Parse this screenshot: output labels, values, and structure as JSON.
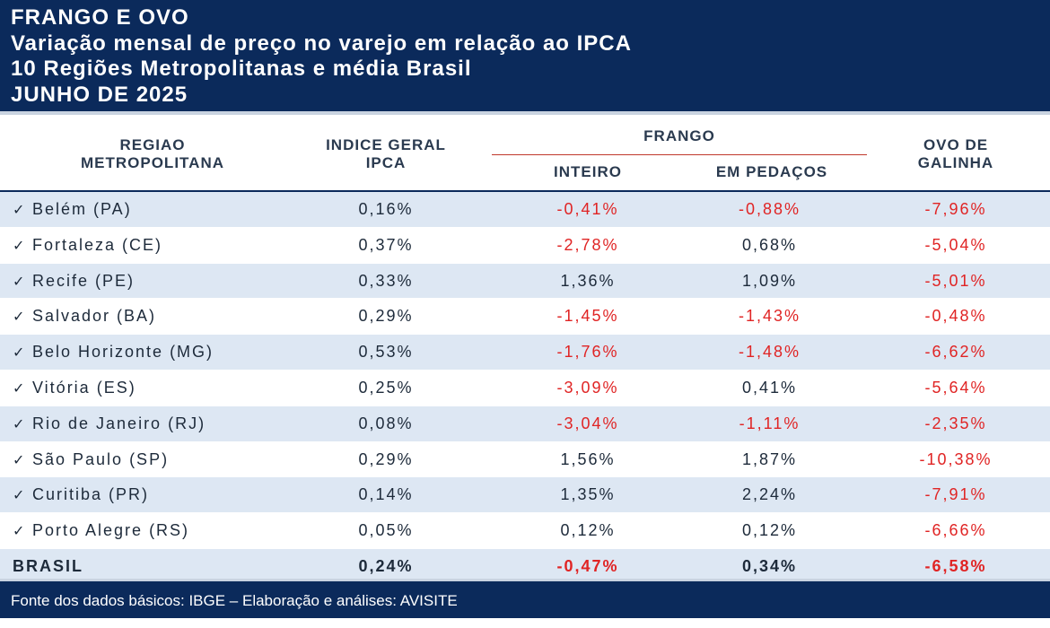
{
  "title": {
    "line1": "FRANGO E OVO",
    "line2": "Variação mensal de preço no varejo em relação ao IPCA",
    "line3": "10 Regiões Metropolitanas e média Brasil",
    "line4": "JUNHO DE 2025"
  },
  "header": {
    "regiao_l1": "REGIAO",
    "regiao_l2": "METROPOLITANA",
    "ipca_l1": "INDICE GERAL",
    "ipca_l2": "IPCA",
    "frango": "FRANGO",
    "inteiro": "INTEIRO",
    "pedacos": "EM PEDAÇOS",
    "ovo_l1": "OVO DE",
    "ovo_l2": "GALINHA"
  },
  "check_symbol": "✓",
  "rows": [
    {
      "name": "Belém (PA)",
      "ipca": "0,16%",
      "inteiro": "-0,41%",
      "pedacos": "-0,88%",
      "ovo": "-7,96%"
    },
    {
      "name": "Fortaleza (CE)",
      "ipca": "0,37%",
      "inteiro": "-2,78%",
      "pedacos": "0,68%",
      "ovo": "-5,04%"
    },
    {
      "name": "Recife (PE)",
      "ipca": "0,33%",
      "inteiro": "1,36%",
      "pedacos": "1,09%",
      "ovo": "-5,01%"
    },
    {
      "name": "Salvador (BA)",
      "ipca": "0,29%",
      "inteiro": "-1,45%",
      "pedacos": "-1,43%",
      "ovo": "-0,48%"
    },
    {
      "name": "Belo Horizonte (MG)",
      "ipca": "0,53%",
      "inteiro": "-1,76%",
      "pedacos": "-1,48%",
      "ovo": "-6,62%"
    },
    {
      "name": "Vitória (ES)",
      "ipca": "0,25%",
      "inteiro": "-3,09%",
      "pedacos": "0,41%",
      "ovo": "-5,64%"
    },
    {
      "name": "Rio de Janeiro (RJ)",
      "ipca": "0,08%",
      "inteiro": "-3,04%",
      "pedacos": "-1,11%",
      "ovo": "-2,35%"
    },
    {
      "name": "São Paulo (SP)",
      "ipca": "0,29%",
      "inteiro": "1,56%",
      "pedacos": "1,87%",
      "ovo": "-10,38%"
    },
    {
      "name": "Curitiba (PR)",
      "ipca": "0,14%",
      "inteiro": "1,35%",
      "pedacos": "2,24%",
      "ovo": "-7,91%"
    },
    {
      "name": "Porto Alegre (RS)",
      "ipca": "0,05%",
      "inteiro": "0,12%",
      "pedacos": "0,12%",
      "ovo": "-6,66%"
    }
  ],
  "total": {
    "name": "BRASIL",
    "ipca": "0,24%",
    "inteiro": "-0,47%",
    "pedacos": "0,34%",
    "ovo": "-6,58%"
  },
  "footer": "Fonte dos dados básicos: IBGE – Elaboração e análises: AVISITE",
  "colors": {
    "navy": "#0b2a5b",
    "stripe": "#dde7f3",
    "negative": "#e02424",
    "text": "#1d2a3a"
  }
}
